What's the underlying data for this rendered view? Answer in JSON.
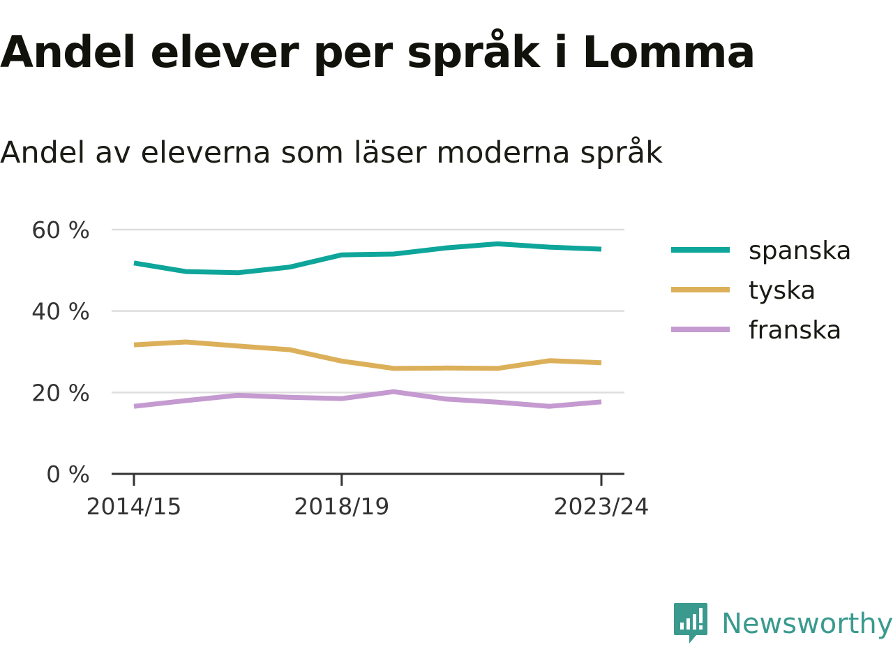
{
  "title": "Andel elever per språk i Lomma",
  "subtitle": "Andel av eleverna som läser moderna språk",
  "brand": {
    "name": "Newsworthy",
    "icon": "newsworthy-logo-icon",
    "color": "#3a9a8e"
  },
  "chart_data": {
    "type": "line",
    "x": [
      "2014/15",
      "2015/16",
      "2016/17",
      "2017/18",
      "2018/19",
      "2019/20",
      "2020/21",
      "2021/22",
      "2022/23",
      "2023/24"
    ],
    "x_ticks": [
      "2014/15",
      "2018/19",
      "2023/24"
    ],
    "ylim": [
      0,
      60
    ],
    "y_ticks": [
      {
        "value": 0,
        "label": "0 %"
      },
      {
        "value": 20,
        "label": "20 %"
      },
      {
        "value": 40,
        "label": "40 %"
      },
      {
        "value": 60,
        "label": "60 %"
      }
    ],
    "grid": true,
    "legend_position": "right",
    "series": [
      {
        "name": "spanska",
        "color": "#0ea59a",
        "values": [
          51.8,
          49.7,
          49.4,
          50.8,
          53.8,
          54.0,
          55.5,
          56.5,
          55.7,
          55.2
        ]
      },
      {
        "name": "tyska",
        "color": "#dcb05a",
        "values": [
          31.7,
          32.4,
          31.4,
          30.5,
          27.7,
          25.9,
          26.0,
          25.9,
          27.8,
          27.3
        ]
      },
      {
        "name": "franska",
        "color": "#c49ad0",
        "values": [
          16.6,
          18.0,
          19.3,
          18.8,
          18.5,
          20.2,
          18.4,
          17.6,
          16.6,
          17.7
        ]
      }
    ]
  }
}
